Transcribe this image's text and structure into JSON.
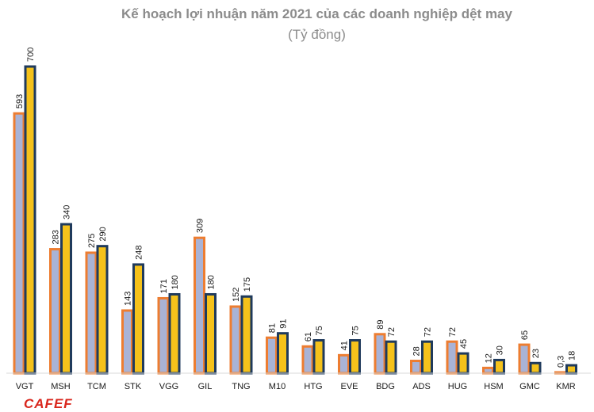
{
  "chart_data": {
    "type": "bar",
    "title": "Kế hoạch lợi nhuận năm 2021 của các doanh nghiệp dệt may",
    "subtitle": "(Tỷ đồng)",
    "xlabel": "",
    "ylabel": "",
    "ylim": [
      0,
      700
    ],
    "grid": false,
    "categories": [
      "VGT",
      "MSH",
      "TCM",
      "STK",
      "VGG",
      "GIL",
      "TNG",
      "M10",
      "HTG",
      "EVE",
      "BDG",
      "ADS",
      "HUG",
      "HSM",
      "GMC",
      "KMR"
    ],
    "series": [
      {
        "values": [
          593,
          283,
          275,
          143,
          171,
          309,
          152,
          81,
          61,
          41,
          89,
          28,
          72,
          12,
          65,
          0.3
        ],
        "labels": [
          "593",
          "283",
          "275",
          "143",
          "171",
          "309",
          "152",
          "81",
          "61",
          "41",
          "89",
          "28",
          "72",
          "12",
          "65",
          "0,3"
        ],
        "fill": "#a9b3d6",
        "stroke": "#ed7d31"
      },
      {
        "values": [
          700,
          340,
          290,
          248,
          180,
          180,
          175,
          91,
          75,
          75,
          72,
          72,
          45,
          30,
          23,
          18
        ],
        "labels": [
          "700",
          "340",
          "290",
          "248",
          "180",
          "180",
          "175",
          "91",
          "75",
          "75",
          "72",
          "72",
          "45",
          "30",
          "23",
          "18"
        ],
        "fill": "#f5c21b",
        "stroke": "#1f3a5c"
      }
    ]
  },
  "logo": {
    "text": "CAFEF"
  }
}
